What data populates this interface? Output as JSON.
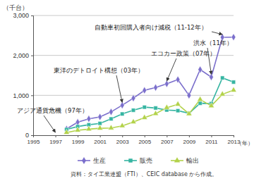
{
  "chart_data": {
    "type": "line",
    "y_label": "（千台）",
    "x_label": "（年）",
    "source": "資料：タイ工業連盟（FTI）、CEIC database から作成。",
    "x": [
      1995,
      1996,
      1997,
      1998,
      1999,
      2000,
      2001,
      2002,
      2003,
      2004,
      2005,
      2006,
      2007,
      2008,
      2009,
      2010,
      2011,
      2012,
      2013
    ],
    "series": [
      {
        "name": "生産",
        "color": "#7b6fcc",
        "marker": "diamond",
        "values": [
          null,
          null,
          null,
          158,
          327,
          411,
          459,
          585,
          751,
          928,
          1125,
          1194,
          1287,
          1394,
          999,
          1645,
          1458,
          2454,
          2457
        ]
      },
      {
        "name": "販売",
        "color": "#36b5a2",
        "marker": "square",
        "values": [
          null,
          null,
          null,
          144,
          218,
          262,
          297,
          409,
          533,
          626,
          703,
          682,
          631,
          615,
          549,
          800,
          794,
          1436,
          1331
        ]
      },
      {
        "name": "輸出",
        "color": "#b3d24a",
        "marker": "triangle",
        "values": [
          null,
          null,
          null,
          67,
          125,
          153,
          175,
          181,
          235,
          332,
          440,
          539,
          690,
          775,
          535,
          895,
          735,
          1026,
          1128
        ]
      }
    ],
    "xlim": [
      1995,
      2013
    ],
    "xticks": [
      1995,
      1997,
      1999,
      2001,
      2003,
      2005,
      2007,
      2009,
      2011,
      2013
    ],
    "ylim": [
      0,
      3000
    ],
    "yticks": [
      0,
      {
        "value": 1000,
        "label": "1,000"
      },
      {
        "value": 2000,
        "label": "2,000"
      },
      {
        "value": 3000,
        "label": "3,000"
      }
    ],
    "grid": true,
    "legend": "bottom",
    "annotations": [
      {
        "text": "アジア通貨危機（97年）",
        "x": 1997
      },
      {
        "text": "東洋のデトロイト構想（03年）",
        "x": 2003
      },
      {
        "text": "エコカー政策（07年）",
        "x": 2007
      },
      {
        "text": "洪水（11年）",
        "x": 2011
      },
      {
        "text": "自動車初回購入者向け減税（11-12年）",
        "x": 2012
      }
    ]
  }
}
